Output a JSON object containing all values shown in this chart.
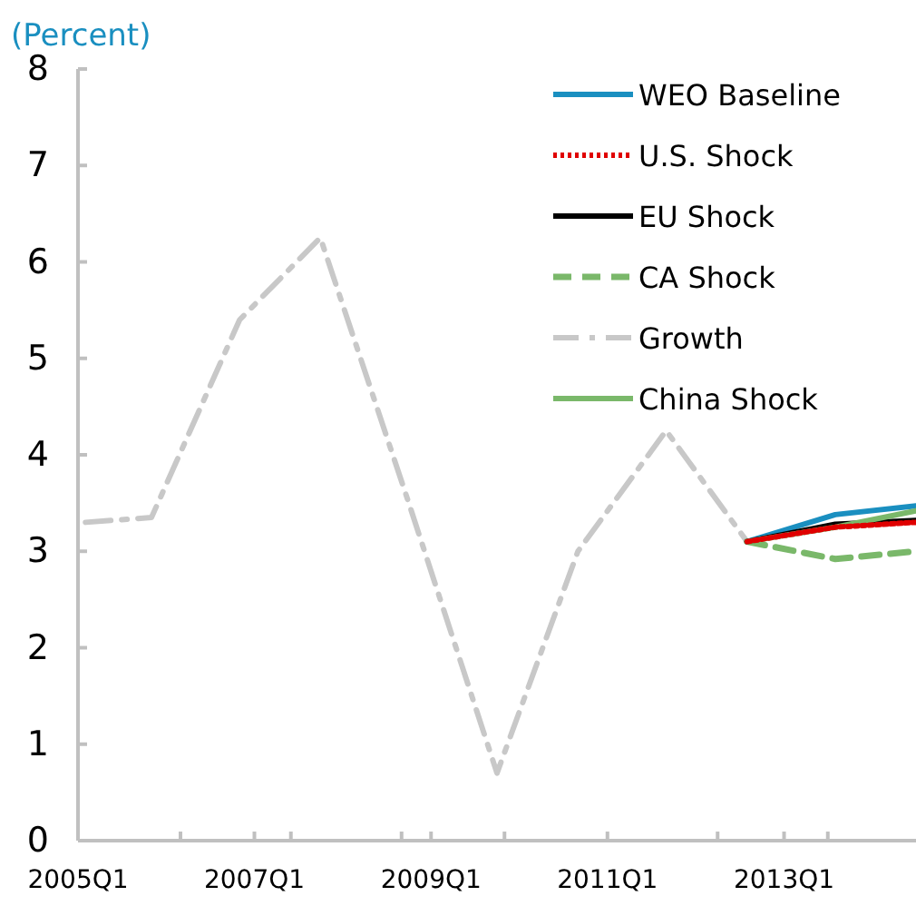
{
  "chart_data": {
    "type": "line",
    "ylabel": "(Percent)",
    "xlim": [
      "2005-01",
      "2014-07"
    ],
    "ylim": [
      0,
      8
    ],
    "yticks": [
      0,
      1,
      2,
      3,
      4,
      5,
      6,
      7,
      8
    ],
    "xticks": [
      {
        "value": "2005-01",
        "label": "2005Q1"
      },
      {
        "value": "2006-03",
        "label": null
      },
      {
        "value": "2007-01",
        "label": "2007Q1"
      },
      {
        "value": "2007-06",
        "label": null
      },
      {
        "value": "2008-09",
        "label": null
      },
      {
        "value": "2009-01",
        "label": "2009Q1"
      },
      {
        "value": "2009-11",
        "label": null
      },
      {
        "value": "2011-01",
        "label": "2011Q1"
      },
      {
        "value": "2012-04",
        "label": null
      },
      {
        "value": "2013-01",
        "label": "2013Q1"
      },
      {
        "value": "2013-07",
        "label": null
      }
    ],
    "grid": false,
    "legend": "top right",
    "marker": "none",
    "series": [
      {
        "name": "WEO Baseline",
        "color": "#1a8fc0",
        "line_style": "solid",
        "x": [
          "2012-08",
          "2013-08",
          "2014-07"
        ],
        "values": [
          3.1,
          3.38,
          3.47
        ]
      },
      {
        "name": "U.S. Shock",
        "color": "#e00000",
        "line_style": "dotted",
        "x": [
          "2012-08",
          "2013-08",
          "2014-07"
        ],
        "values": [
          3.1,
          3.25,
          3.3
        ]
      },
      {
        "name": "EU Shock",
        "color": "#000000",
        "line_style": "solid",
        "x": [
          "2012-08",
          "2013-08",
          "2014-07"
        ],
        "values": [
          3.1,
          3.28,
          3.32
        ]
      },
      {
        "name": "CA Shock",
        "color": "#7ab86a",
        "line_style": "dashed",
        "x": [
          "2012-08",
          "2013-08",
          "2014-07"
        ],
        "values": [
          3.1,
          2.92,
          3.0
        ]
      },
      {
        "name": "Growth",
        "color": "#c8c8c8",
        "line_style": "dashdot",
        "x": [
          "2005-02",
          "2005-11",
          "2006-11",
          "2007-10",
          "2008-10",
          "2009-10",
          "2010-09",
          "2011-09",
          "2012-08"
        ],
        "values": [
          3.3,
          3.35,
          5.4,
          6.25,
          3.5,
          0.7,
          3.0,
          4.25,
          3.1
        ]
      },
      {
        "name": "China Shock",
        "color": "#7ab86a",
        "line_style": "solid",
        "x": [
          "2012-08",
          "2013-08",
          "2014-07"
        ],
        "values": [
          3.1,
          3.25,
          3.42
        ]
      }
    ]
  }
}
